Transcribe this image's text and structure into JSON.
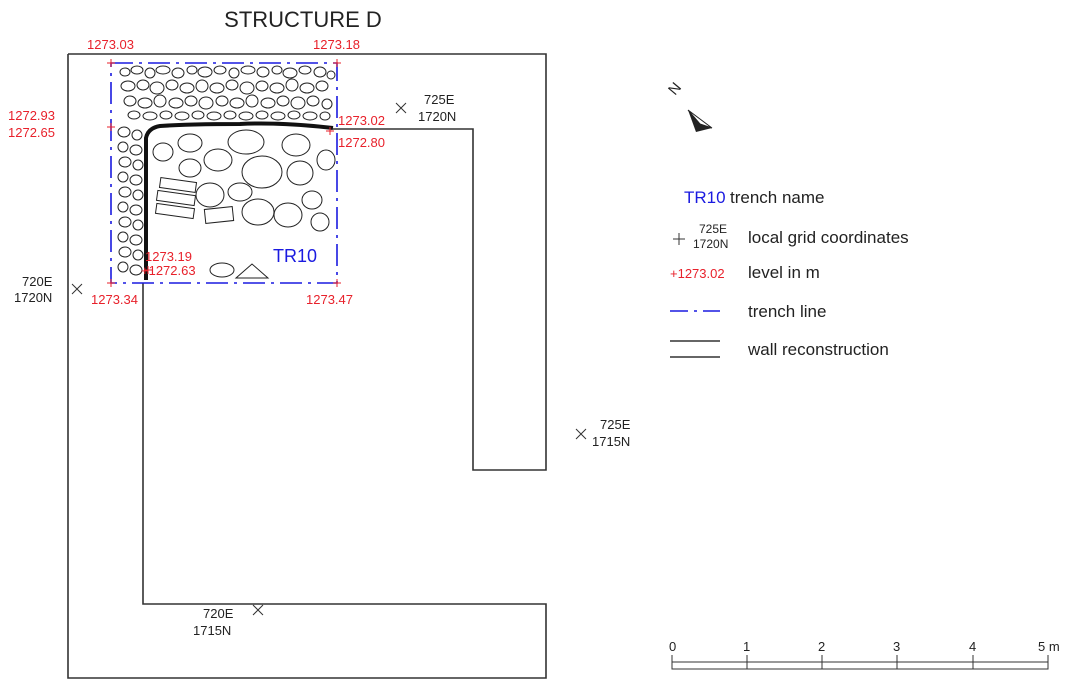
{
  "title": "STRUCTURE D",
  "trench": {
    "name": "TR10"
  },
  "levels": {
    "top_left": "1273.03",
    "top_right": "1273.18",
    "left_upper": "1272.93",
    "left_lower": "1272.65",
    "right_upper": "1273.02",
    "right_lower": "1272.80",
    "inner_a": "1273.19",
    "inner_b": "+1272.63",
    "bottom_left": "1273.34",
    "bottom_right": "1273.47"
  },
  "grid_points": [
    {
      "e": "725E",
      "n": "1720N"
    },
    {
      "e": "720E",
      "n": "1720N"
    },
    {
      "e": "725E",
      "n": "1715N"
    },
    {
      "e": "720E",
      "n": "1715N"
    }
  ],
  "legend": {
    "trench_sample": "TR10",
    "trench_label": "trench name",
    "grid_sample_e": "725E",
    "grid_sample_n": "1720N",
    "grid_label": "local grid coordinates",
    "level_sample": "+1273.02",
    "level_label": "level in m",
    "trench_line_label": "trench line",
    "wall_label": "wall reconstruction"
  },
  "north_label": "N",
  "scale": {
    "ticks": [
      "0",
      "1",
      "2",
      "3",
      "4",
      "5 m"
    ]
  },
  "colors": {
    "level": "#e8212b",
    "trench": "#1a1ae0",
    "ink": "#222222"
  }
}
